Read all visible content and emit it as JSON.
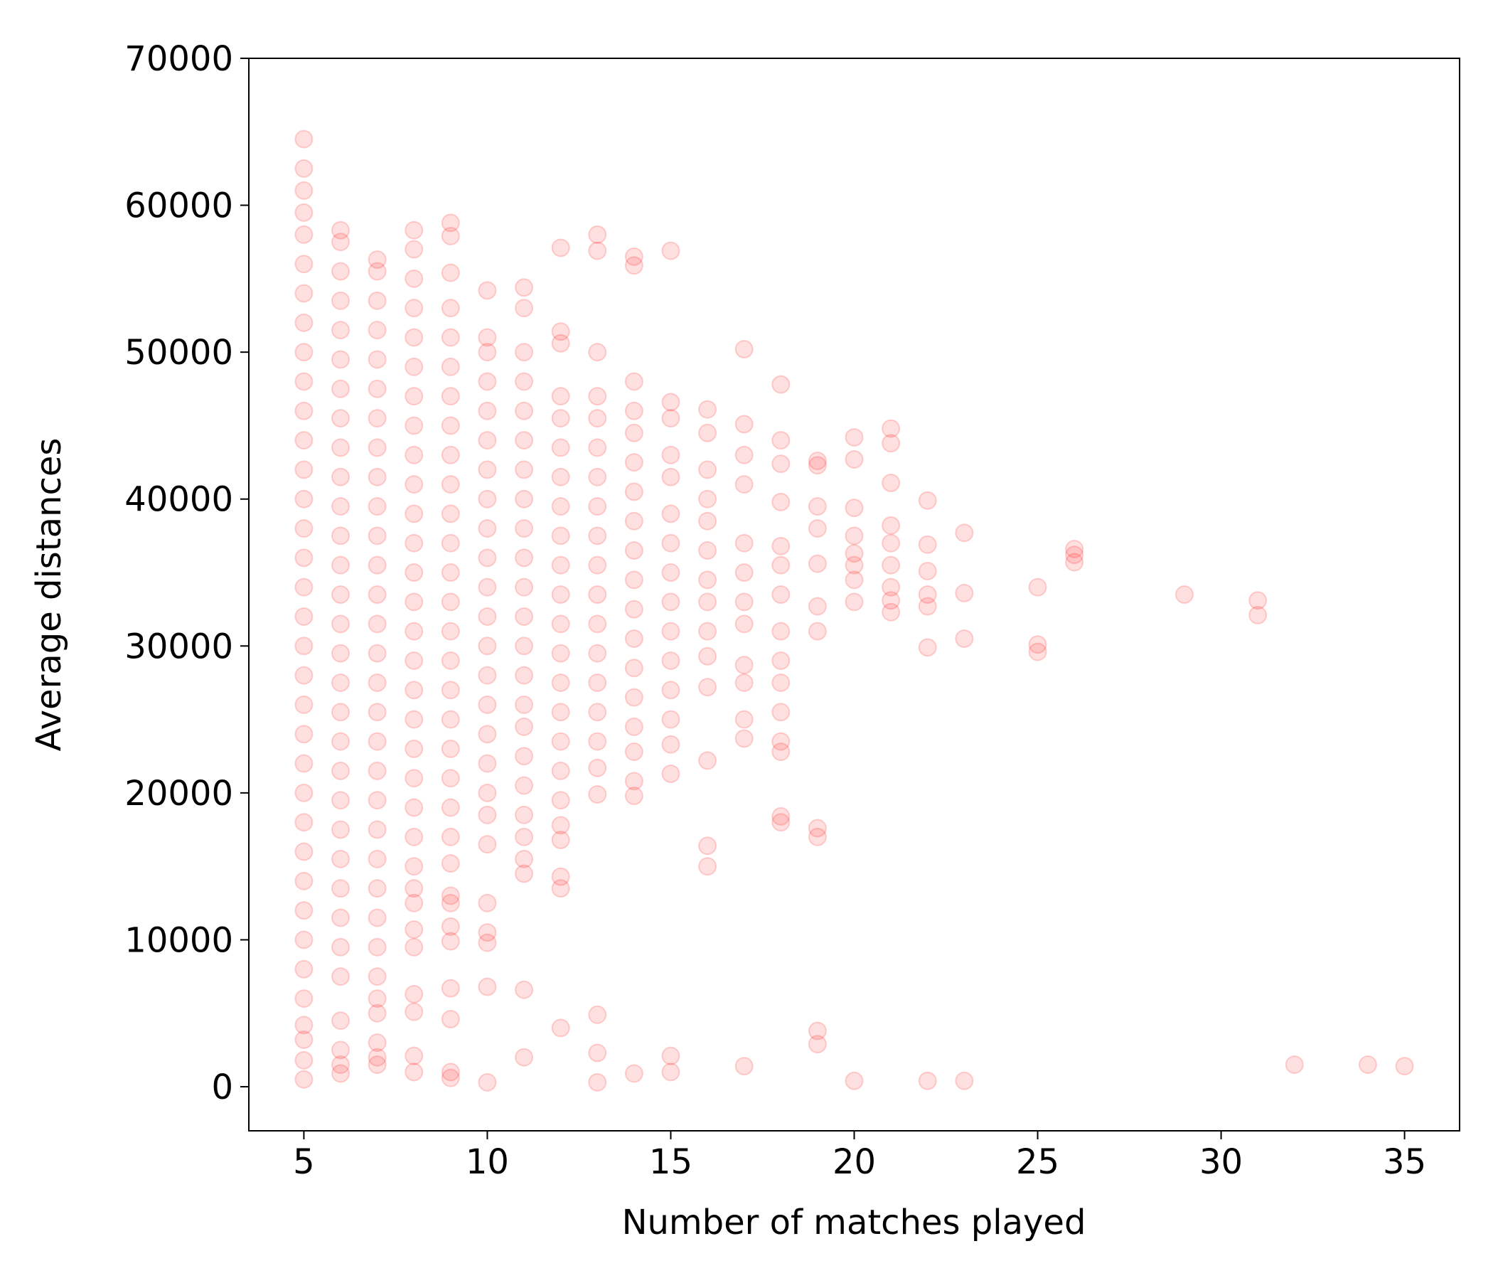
{
  "chart_data": {
    "type": "scatter",
    "x_label": "Number of matches played",
    "y_label": "Average distances",
    "xlim": [
      3.5,
      36.5
    ],
    "ylim": [
      -3000,
      70000
    ],
    "xticks": [
      5,
      10,
      15,
      20,
      25,
      30,
      35
    ],
    "yticks": [
      0,
      10000,
      20000,
      30000,
      40000,
      50000,
      60000,
      70000
    ],
    "grid": false,
    "series": [
      {
        "color": "#ff0000",
        "alpha": 0.12,
        "x": [
          5,
          5,
          5,
          5,
          5,
          5,
          5,
          5,
          5,
          5,
          5,
          5,
          5,
          5,
          5,
          5,
          5,
          5,
          5,
          5,
          5,
          5,
          5,
          5,
          5,
          5,
          5,
          5,
          5,
          5,
          5,
          5,
          5,
          5,
          5,
          6,
          6,
          6,
          6,
          6,
          6,
          6,
          6,
          6,
          6,
          6,
          6,
          6,
          6,
          6,
          6,
          6,
          6,
          6,
          6,
          6,
          6,
          6,
          6,
          6,
          6,
          6,
          6,
          6,
          6,
          6,
          7,
          7,
          7,
          7,
          7,
          7,
          7,
          7,
          7,
          7,
          7,
          7,
          7,
          7,
          7,
          7,
          7,
          7,
          7,
          7,
          7,
          7,
          7,
          7,
          7,
          7,
          7,
          7,
          7,
          7,
          7,
          8,
          8,
          8,
          8,
          8,
          8,
          8,
          8,
          8,
          8,
          8,
          8,
          8,
          8,
          8,
          8,
          8,
          8,
          8,
          8,
          8,
          8,
          8,
          8,
          8,
          8,
          8,
          8,
          8,
          8,
          8,
          9,
          9,
          9,
          9,
          9,
          9,
          9,
          9,
          9,
          9,
          9,
          9,
          9,
          9,
          9,
          9,
          9,
          9,
          9,
          9,
          9,
          9,
          9,
          9,
          9,
          9,
          9,
          9,
          9,
          9,
          9,
          10,
          10,
          10,
          10,
          10,
          10,
          10,
          10,
          10,
          10,
          10,
          10,
          10,
          10,
          10,
          10,
          10,
          10,
          10,
          10,
          10,
          10,
          10,
          10,
          10,
          11,
          11,
          11,
          11,
          11,
          11,
          11,
          11,
          11,
          11,
          11,
          11,
          11,
          11,
          11,
          11,
          11,
          11,
          11,
          11,
          11,
          11,
          11,
          11,
          12,
          12,
          12,
          12,
          12,
          12,
          12,
          12,
          12,
          12,
          12,
          12,
          12,
          12,
          12,
          12,
          12,
          12,
          12,
          12,
          12,
          12,
          12,
          13,
          13,
          13,
          13,
          13,
          13,
          13,
          13,
          13,
          13,
          13,
          13,
          13,
          13,
          13,
          13,
          13,
          13,
          13,
          13,
          13,
          14,
          14,
          14,
          14,
          14,
          14,
          14,
          14,
          14,
          14,
          14,
          14,
          14,
          14,
          14,
          14,
          14,
          14,
          14,
          15,
          15,
          15,
          15,
          15,
          15,
          15,
          15,
          15,
          15,
          15,
          15,
          15,
          15,
          15,
          15,
          15,
          16,
          16,
          16,
          16,
          16,
          16,
          16,
          16,
          16,
          16,
          16,
          16,
          16,
          16,
          17,
          17,
          17,
          17,
          17,
          17,
          17,
          17,
          17,
          17,
          17,
          17,
          17,
          18,
          18,
          18,
          18,
          18,
          18,
          18,
          18,
          18,
          18,
          18,
          18,
          18,
          18,
          18,
          19,
          19,
          19,
          19,
          19,
          19,
          19,
          19,
          19,
          19,
          19,
          20,
          20,
          20,
          20,
          20,
          20,
          20,
          20,
          20,
          21,
          21,
          21,
          21,
          21,
          21,
          21,
          21,
          21,
          22,
          22,
          22,
          22,
          22,
          22,
          22,
          23,
          23,
          23,
          23,
          25,
          25,
          25,
          26,
          26,
          26,
          29,
          31,
          31,
          32,
          34,
          35
        ],
        "values": [
          500,
          1800,
          3200,
          4200,
          6000,
          8000,
          10000,
          12000,
          14000,
          16000,
          18000,
          20000,
          22000,
          24000,
          26000,
          28000,
          30000,
          32000,
          34000,
          36000,
          38000,
          40000,
          42000,
          44000,
          46000,
          48000,
          50000,
          52000,
          54000,
          56000,
          58000,
          59500,
          61000,
          62500,
          64500,
          900,
          1500,
          2500,
          4500,
          7500,
          9500,
          11500,
          13500,
          15500,
          17500,
          19500,
          21500,
          23500,
          25500,
          27500,
          29500,
          31500,
          33500,
          35500,
          37500,
          39500,
          41500,
          43500,
          45500,
          47500,
          49500,
          51500,
          53500,
          55500,
          57500,
          58300,
          1500,
          2000,
          3000,
          5000,
          6000,
          7500,
          9500,
          11500,
          13500,
          15500,
          17500,
          19500,
          21500,
          23500,
          25500,
          27500,
          29500,
          31500,
          33500,
          35500,
          37500,
          39500,
          41500,
          43500,
          45500,
          47500,
          49500,
          51500,
          53500,
          55500,
          56300,
          1000,
          2100,
          5100,
          6300,
          9500,
          10700,
          12500,
          13500,
          15000,
          17000,
          19000,
          21000,
          23000,
          25000,
          27000,
          29000,
          31000,
          33000,
          35000,
          37000,
          39000,
          41000,
          43000,
          45000,
          47000,
          49000,
          51000,
          53000,
          55000,
          57000,
          58300,
          600,
          1000,
          4600,
          6700,
          9900,
          10900,
          12500,
          13000,
          15200,
          17000,
          19000,
          21000,
          23000,
          25000,
          27000,
          29000,
          31000,
          33000,
          35000,
          37000,
          39000,
          41000,
          43000,
          45000,
          47000,
          49000,
          51000,
          53000,
          55400,
          57900,
          58800,
          300,
          9800,
          10500,
          12500,
          6800,
          16500,
          18500,
          20000,
          22000,
          24000,
          26000,
          28000,
          30000,
          32000,
          34000,
          36000,
          38000,
          40000,
          42000,
          44000,
          46000,
          48000,
          50000,
          51000,
          54200,
          2000,
          6600,
          14500,
          15500,
          17000,
          18500,
          20500,
          22500,
          24500,
          26000,
          28000,
          30000,
          32000,
          34000,
          36000,
          38000,
          40000,
          42000,
          44000,
          46000,
          48000,
          50000,
          53000,
          54400,
          4000,
          13500,
          14300,
          16800,
          17800,
          19500,
          21500,
          23500,
          25500,
          27500,
          29500,
          31500,
          33500,
          35500,
          37500,
          39500,
          41500,
          43500,
          45500,
          47000,
          50600,
          51400,
          57100,
          300,
          2300,
          4900,
          19900,
          21700,
          23500,
          25500,
          27500,
          29500,
          31500,
          33500,
          35500,
          37500,
          39500,
          41500,
          43500,
          45500,
          47000,
          50000,
          56900,
          58000,
          900,
          19800,
          20800,
          22800,
          24500,
          26500,
          28500,
          30500,
          32500,
          34500,
          36500,
          38500,
          40500,
          42500,
          44500,
          46000,
          48000,
          55900,
          56500,
          1000,
          2100,
          21300,
          23300,
          25000,
          27000,
          29000,
          31000,
          33000,
          35000,
          37000,
          39000,
          41500,
          43000,
          45500,
          46600,
          56900,
          22200,
          15000,
          16400,
          27200,
          29300,
          31000,
          33000,
          34500,
          36500,
          38500,
          40000,
          42000,
          44500,
          46100,
          1400,
          23700,
          25000,
          27500,
          28700,
          31500,
          33000,
          35000,
          37000,
          41000,
          43000,
          45100,
          50200,
          18000,
          18400,
          22800,
          23500,
          25500,
          27500,
          29000,
          31000,
          33500,
          35500,
          36800,
          39800,
          42400,
          44000,
          47800,
          2900,
          3800,
          17000,
          17600,
          31000,
          32700,
          35600,
          38000,
          39500,
          42300,
          42600,
          400,
          33000,
          34500,
          35500,
          36300,
          37500,
          39400,
          42700,
          44200,
          32300,
          33100,
          34000,
          35500,
          37000,
          38200,
          41100,
          43800,
          44800,
          400,
          29900,
          32700,
          33500,
          35100,
          36900,
          39900,
          400,
          30500,
          33600,
          37700,
          29600,
          30100,
          34000,
          35700,
          36200,
          36600,
          33500,
          32100,
          33100,
          1500,
          1500,
          1400
        ]
      }
    ]
  }
}
